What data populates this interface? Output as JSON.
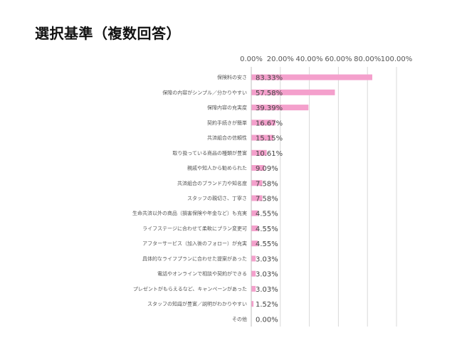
{
  "page": {
    "title": "選択基準（複数回答）"
  },
  "chart_data": {
    "type": "bar",
    "orientation": "horizontal",
    "title": "選択基準（複数回答）",
    "xlim": [
      0,
      100
    ],
    "xticks": [
      "0.00%",
      "20.00%",
      "40.00%",
      "60.00%",
      "80.00%",
      "100.00%"
    ],
    "grid": true,
    "bar_color": "#f4a0cc",
    "categories": [
      "保険料の安さ",
      "保障の内容がシンプル／分かりやすい",
      "保障内容の充実度",
      "契約手続きが簡単",
      "共済組合の信頼性",
      "取り扱っている商品の種類が豊富",
      "親戚や知人から勧められた",
      "共済組合のブランド力や知名度",
      "スタッフの親切さ、丁寧さ",
      "生命共済以外の商品（損害保険や年金など）も充実",
      "ライフステージに合わせて柔軟にプラン変更可",
      "アフターサービス（加入後のフォロー）が充実",
      "具体的なライフプランに合わせた提案があった",
      "電話やオンラインで相談や契約ができる",
      "プレゼントがもらえるなど、キャンペーンがあった",
      "スタッフの知識が豊富／説明がわかりやすい",
      "その他"
    ],
    "values": [
      83.33,
      57.58,
      39.39,
      16.67,
      15.15,
      10.61,
      9.09,
      7.58,
      7.58,
      4.55,
      4.55,
      4.55,
      3.03,
      3.03,
      3.03,
      1.52,
      0.0
    ],
    "labels": [
      "83.33%",
      "57.58%",
      "39.39%",
      "16.67%",
      "15.15%",
      "10.61%",
      "9.09%",
      "7.58%",
      "7.58%",
      "4.55%",
      "4.55%",
      "4.55%",
      "3.03%",
      "3.03%",
      "3.03%",
      "1.52%",
      "0.00%"
    ]
  }
}
